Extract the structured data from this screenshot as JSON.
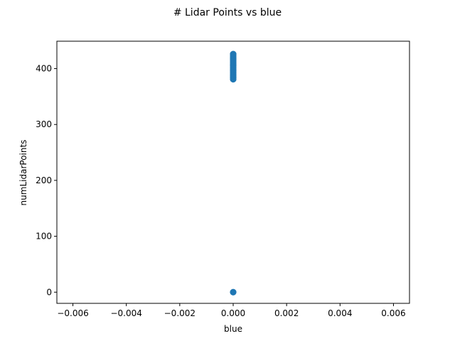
{
  "chart_data": {
    "type": "scatter",
    "title": "# Lidar Points vs blue",
    "xlabel": "blue",
    "ylabel": "numLidarPoints",
    "xlim": [
      -0.0066,
      0.0066
    ],
    "ylim": [
      -20,
      449
    ],
    "x_ticks": [
      -0.006,
      -0.004,
      -0.002,
      0.0,
      0.002,
      0.004,
      0.006
    ],
    "x_tick_labels": [
      "−0.006",
      "−0.004",
      "−0.002",
      "0.000",
      "0.002",
      "0.004",
      "0.006"
    ],
    "y_ticks": [
      0,
      100,
      200,
      300,
      400
    ],
    "y_tick_labels": [
      "0",
      "100",
      "200",
      "300",
      "400"
    ],
    "grid": false,
    "marker_color": "#1f77b4",
    "points": [
      {
        "x": 0,
        "y": 0
      },
      {
        "x": 0,
        "y": 381
      },
      {
        "x": 0,
        "y": 384
      },
      {
        "x": 0,
        "y": 387
      },
      {
        "x": 0,
        "y": 390
      },
      {
        "x": 0,
        "y": 393
      },
      {
        "x": 0,
        "y": 396
      },
      {
        "x": 0,
        "y": 399
      },
      {
        "x": 0,
        "y": 402
      },
      {
        "x": 0,
        "y": 405
      },
      {
        "x": 0,
        "y": 408
      },
      {
        "x": 0,
        "y": 411
      },
      {
        "x": 0,
        "y": 414
      },
      {
        "x": 0,
        "y": 417
      },
      {
        "x": 0,
        "y": 420
      },
      {
        "x": 0,
        "y": 423
      },
      {
        "x": 0,
        "y": 426
      }
    ]
  }
}
